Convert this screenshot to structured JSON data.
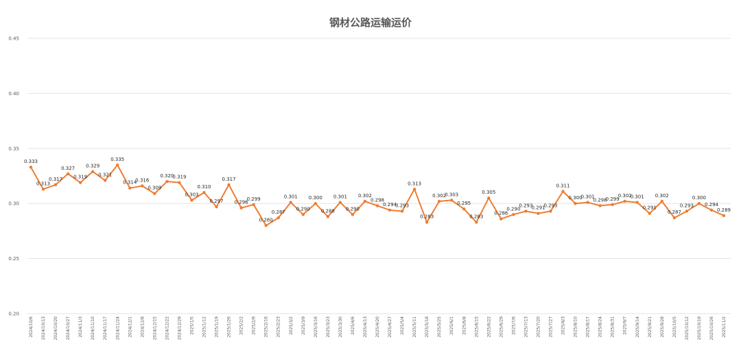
{
  "chart_data": {
    "type": "line",
    "title": "钢材公路运输运价",
    "xlabel": "",
    "ylabel": "",
    "ylim": [
      0.2,
      0.45
    ],
    "yticks": [
      "0.20",
      "0.25",
      "0.30",
      "0.35",
      "0.40",
      "0.45"
    ],
    "grid": true,
    "legend": "none",
    "line_color": "#ED7D31",
    "x": [
      "2024/10/6",
      "2024/10/13",
      "2024/10/20",
      "2024/10/27",
      "2024/11/3",
      "2024/11/10",
      "2024/11/17",
      "2024/11/24",
      "2024/12/1",
      "2024/12/8",
      "2024/12/15",
      "2024/12/22",
      "2024/12/29",
      "2025/1/5",
      "2025/1/12",
      "2025/1/19",
      "2025/1/26",
      "2025/2/2",
      "2025/2/9",
      "2025/2/16",
      "2025/2/23",
      "2025/3/2",
      "2025/3/9",
      "2025/3/16",
      "2025/3/23",
      "2025/3/30",
      "2025/4/6",
      "2025/4/13",
      "2025/4/20",
      "2025/4/27",
      "2025/5/4",
      "2025/5/11",
      "2025/5/18",
      "2025/5/25",
      "2025/6/1",
      "2025/6/8",
      "2025/6/15",
      "2025/6/22",
      "2025/6/29",
      "2025/7/6",
      "2025/7/13",
      "2025/7/20",
      "2025/7/27",
      "2025/8/3",
      "2025/8/10",
      "2025/8/17",
      "2025/8/24",
      "2025/8/31",
      "2025/9/7",
      "2025/9/14",
      "2025/9/21",
      "2025/9/28",
      "2025/10/5",
      "2025/10/12",
      "2025/10/19",
      "2025/10/26",
      "2025/11/2"
    ],
    "labels": [
      "0.333",
      "0.313",
      "0.317",
      "0.327",
      "0.319",
      "0.329",
      "0.321",
      "0.335",
      "0.314",
      "0.316",
      "0.309",
      "0.320",
      "0.319",
      "0.303",
      "0.310",
      "0.297",
      "0.317",
      "0.296",
      "0.299",
      "0.280",
      "0.287",
      "0.301",
      "0.290",
      "0.300",
      "0.288",
      "0.301",
      "0.290",
      "0.302",
      "0.298",
      "0.294",
      "0.293",
      "0.313",
      "0.283",
      "0.302",
      "0.303",
      "0.295",
      "0.283",
      "0.305",
      "0.286",
      "0.290",
      "0.293",
      "0.291",
      "0.293",
      "0.311",
      "0.300",
      "0.301",
      "0.298",
      "0.299",
      "0.302",
      "0.301",
      "0.291",
      "0.302",
      "0.287",
      "0.293",
      "0.300",
      "0.294",
      "0.289"
    ],
    "values": [
      0.333,
      0.313,
      0.317,
      0.327,
      0.319,
      0.329,
      0.321,
      0.335,
      0.314,
      0.316,
      0.309,
      0.32,
      0.319,
      0.303,
      0.31,
      0.297,
      0.317,
      0.296,
      0.299,
      0.28,
      0.287,
      0.301,
      0.29,
      0.3,
      0.288,
      0.301,
      0.29,
      0.302,
      0.298,
      0.294,
      0.293,
      0.313,
      0.283,
      0.302,
      0.303,
      0.295,
      0.283,
      0.305,
      0.286,
      0.29,
      0.293,
      0.291,
      0.293,
      0.311,
      0.3,
      0.301,
      0.298,
      0.299,
      0.302,
      0.301,
      0.291,
      0.302,
      0.287,
      0.293,
      0.3,
      0.294,
      0.289
    ]
  }
}
